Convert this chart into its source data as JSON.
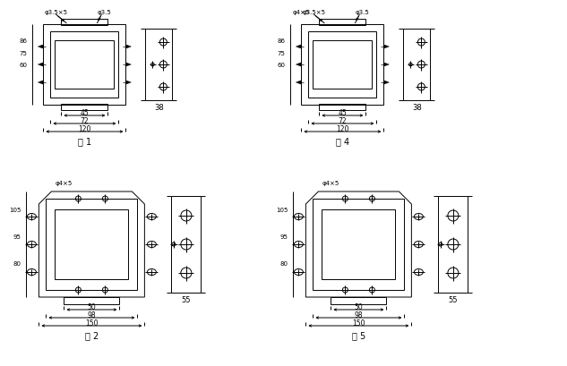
{
  "bg_color": "#ffffff",
  "line_color": "#000000",
  "fig1": {
    "label": "图 1",
    "ann1": "φ3.5×5",
    "ann2": "φ3.5",
    "side_label": "38",
    "dims": [
      "45",
      "72",
      "120"
    ],
    "vdims": [
      "86",
      "75",
      "60"
    ]
  },
  "fig2": {
    "label": "图 2",
    "ann1": "φ4×5",
    "side_label": "55",
    "dims": [
      "50",
      "98",
      "150"
    ],
    "vdims": [
      "105",
      "95",
      "80"
    ]
  },
  "fig4": {
    "label": "图 4",
    "ann1": "φ3.5×5",
    "ann2": "φ3.5",
    "ann0": "φ4×5",
    "side_label": "38",
    "dims": [
      "45",
      "72",
      "120"
    ],
    "vdims": [
      "86",
      "75",
      "60"
    ]
  },
  "fig5": {
    "label": "图 5",
    "ann1": "φ4×5",
    "side_label": "55",
    "dims": [
      "50",
      "98",
      "150"
    ],
    "vdims": [
      "105",
      "95",
      "80"
    ]
  }
}
